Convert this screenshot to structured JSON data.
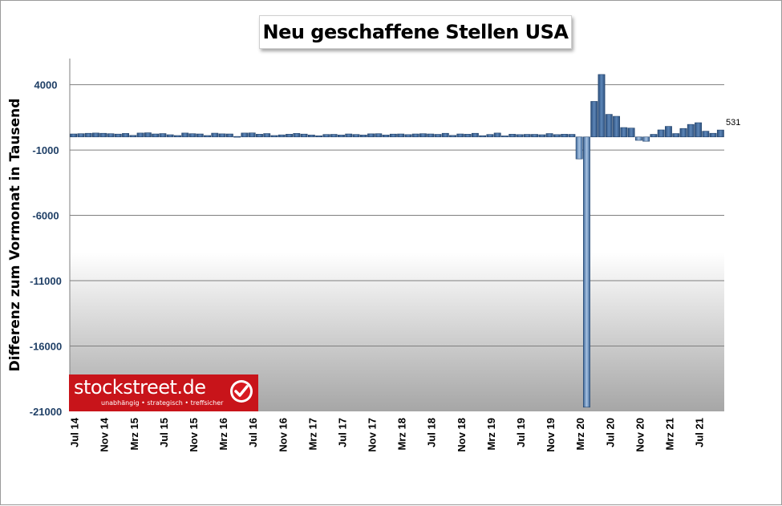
{
  "chart_data": {
    "type": "bar",
    "title": "Neu geschaffene Stellen USA",
    "ylabel": "Differenz zum Vormonat in Tausend",
    "xlabel": "",
    "ylim": [
      -21000,
      6000
    ],
    "yticks": [
      4000,
      -1000,
      -6000,
      -11000,
      -16000,
      -21000
    ],
    "ytick_labels": [
      "4000",
      "-1000",
      "-6000",
      "-11000",
      "-16000",
      "-21000"
    ],
    "grid": true,
    "x_labels": [
      "Jul 14",
      "Nov 14",
      "Mrz 15",
      "Jul 15",
      "Nov 15",
      "Mrz 16",
      "Jul 16",
      "Nov 16",
      "Mrz 17",
      "Jul 17",
      "Nov 17",
      "Mrz 18",
      "Jul 18",
      "Nov 18",
      "Mrz 19",
      "Jul 19",
      "Nov 19",
      "Mrz 20",
      "Jul 20",
      "Nov 20",
      "Mrz 21",
      "Jul 21"
    ],
    "categories": [
      "Jul 14",
      "Aug 14",
      "Sep 14",
      "Okt 14",
      "Nov 14",
      "Dez 14",
      "Jan 15",
      "Feb 15",
      "Mrz 15",
      "Apr 15",
      "Mai 15",
      "Jun 15",
      "Jul 15",
      "Aug 15",
      "Sep 15",
      "Okt 15",
      "Nov 15",
      "Dez 15",
      "Jan 16",
      "Feb 16",
      "Mrz 16",
      "Apr 16",
      "Mai 16",
      "Jun 16",
      "Jul 16",
      "Aug 16",
      "Sep 16",
      "Okt 16",
      "Nov 16",
      "Dez 16",
      "Jan 17",
      "Feb 17",
      "Mrz 17",
      "Apr 17",
      "Mai 17",
      "Jun 17",
      "Jul 17",
      "Aug 17",
      "Sep 17",
      "Okt 17",
      "Nov 17",
      "Dez 17",
      "Jan 18",
      "Feb 18",
      "Mrz 18",
      "Apr 18",
      "Mai 18",
      "Jun 18",
      "Jul 18",
      "Aug 18",
      "Sep 18",
      "Okt 18",
      "Nov 18",
      "Dez 18",
      "Jan 19",
      "Feb 19",
      "Mrz 19",
      "Apr 19",
      "Mai 19",
      "Jun 19",
      "Jul 19",
      "Aug 19",
      "Sep 19",
      "Okt 19",
      "Nov 19",
      "Dez 19",
      "Jan 20",
      "Feb 20",
      "Mrz 20",
      "Apr 20",
      "Mai 20",
      "Jun 20",
      "Jul 20",
      "Aug 20",
      "Sep 20",
      "Okt 20",
      "Nov 20",
      "Dez 20",
      "Jan 21",
      "Feb 21",
      "Mrz 21",
      "Apr 21",
      "Mai 21",
      "Jun 21",
      "Jul 21",
      "Aug 21",
      "Sep 21",
      "Okt 21"
    ],
    "values": [
      230,
      250,
      280,
      300,
      280,
      250,
      220,
      270,
      120,
      300,
      320,
      230,
      260,
      170,
      110,
      300,
      250,
      230,
      110,
      290,
      240,
      230,
      40,
      300,
      310,
      210,
      260,
      110,
      160,
      210,
      270,
      220,
      150,
      90,
      190,
      200,
      150,
      230,
      190,
      150,
      240,
      250,
      150,
      220,
      230,
      180,
      230,
      250,
      230,
      200,
      280,
      120,
      230,
      210,
      280,
      100,
      190,
      300,
      80,
      210,
      180,
      200,
      200,
      170,
      260,
      180,
      210,
      200,
      -1680,
      -20680,
      2720,
      4780,
      1730,
      1580,
      720,
      680,
      -260,
      -330,
      200,
      540,
      810,
      260,
      650,
      960,
      1090,
      440,
      280,
      531
    ],
    "data_labels": [
      {
        "index": 87,
        "text": "531"
      }
    ],
    "bar_color": "#3a6496",
    "grid_color": "#7f7f7f"
  },
  "branding": {
    "name": "stockstreet.de",
    "tagline": "unabhängig • strategisch • treffsicher",
    "color": "#c8141a"
  }
}
